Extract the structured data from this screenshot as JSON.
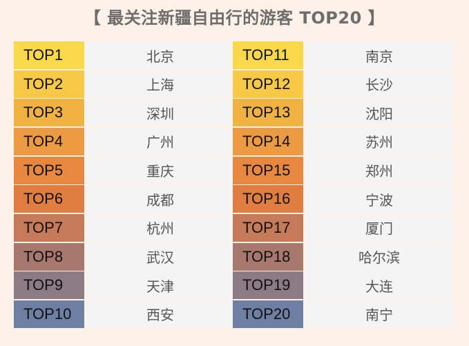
{
  "title": "【 最关注新疆自由行的游客 TOP20 】",
  "chart_data": {
    "type": "table",
    "columns": [
      "rank",
      "city"
    ],
    "rows": [
      {
        "rank": "TOP1",
        "city": "北京",
        "color": "#f9d84a"
      },
      {
        "rank": "TOP2",
        "city": "上海",
        "color": "#f7c947"
      },
      {
        "rank": "TOP3",
        "city": "深圳",
        "color": "#f1b244"
      },
      {
        "rank": "TOP4",
        "city": "广州",
        "color": "#ec9b42"
      },
      {
        "rank": "TOP5",
        "city": "重庆",
        "color": "#e88840"
      },
      {
        "rank": "TOP6",
        "city": "成都",
        "color": "#e07e42"
      },
      {
        "rank": "TOP7",
        "city": "杭州",
        "color": "#c57a58"
      },
      {
        "rank": "TOP8",
        "city": "武汉",
        "color": "#a8776d"
      },
      {
        "rank": "TOP9",
        "city": "天津",
        "color": "#8c7a85"
      },
      {
        "rank": "TOP10",
        "city": "西安",
        "color": "#6d7fa3"
      },
      {
        "rank": "TOP11",
        "city": "南京",
        "color": "#f9d84a"
      },
      {
        "rank": "TOP12",
        "city": "长沙",
        "color": "#f7c947"
      },
      {
        "rank": "TOP13",
        "city": "沈阳",
        "color": "#f1b244"
      },
      {
        "rank": "TOP14",
        "city": "苏州",
        "color": "#ec9b42"
      },
      {
        "rank": "TOP15",
        "city": "郑州",
        "color": "#e88840"
      },
      {
        "rank": "TOP16",
        "city": "宁波",
        "color": "#e07e42"
      },
      {
        "rank": "TOP17",
        "city": "厦门",
        "color": "#c57a58"
      },
      {
        "rank": "TOP18",
        "city": "哈尔滨",
        "color": "#a8776d"
      },
      {
        "rank": "TOP19",
        "city": "大连",
        "color": "#8c7a85"
      },
      {
        "rank": "TOP20",
        "city": "南宁",
        "color": "#6d7fa3"
      }
    ]
  }
}
